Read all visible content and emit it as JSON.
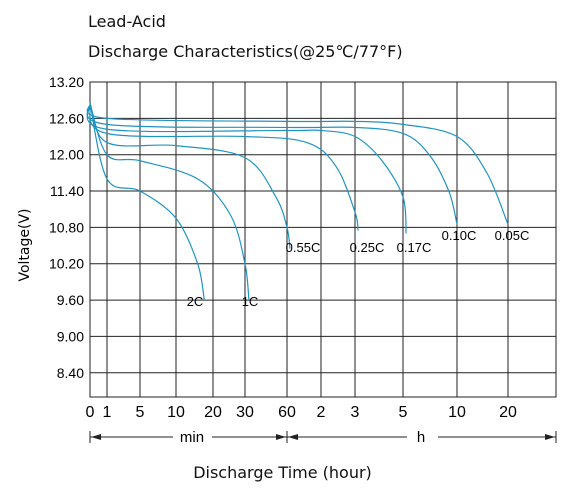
{
  "chart_data": {
    "type": "line",
    "title": "Lead-Acid",
    "subtitle": "Discharge Characteristics(@25℃/77°F)",
    "xlabel": "Discharge Time (hour)",
    "ylabel": "Voltage(V)",
    "ylim": [
      8.0,
      13.2
    ],
    "y_ticks": [
      "13.20",
      "12.60",
      "12.00",
      "11.40",
      "10.80",
      "10.20",
      "9.60",
      "9.00",
      "8.40"
    ],
    "x_ticks": [
      "0",
      "1",
      "5",
      "10",
      "20",
      "30",
      "60",
      "2",
      "3",
      "5",
      "10",
      "20"
    ],
    "x_scale": "logarithmic: 0–60 min, then 60 min–20 h",
    "x_unit_labels": {
      "minutes": "min",
      "hours": "h"
    },
    "grid": true,
    "color": "#1f94c4",
    "series": [
      {
        "name": "2C",
        "points": [
          [
            0,
            12.85
          ],
          [
            1,
            11.6
          ],
          [
            5,
            11.4
          ],
          [
            10,
            10.95
          ],
          [
            15,
            10.2
          ],
          [
            17,
            9.6
          ]
        ]
      },
      {
        "name": "1C",
        "points": [
          [
            0,
            12.85
          ],
          [
            1,
            12.0
          ],
          [
            5,
            11.9
          ],
          [
            15,
            11.6
          ],
          [
            25,
            11.0
          ],
          [
            30,
            10.2
          ],
          [
            32,
            9.6
          ]
        ]
      },
      {
        "name": "0.55C",
        "points": [
          [
            0,
            12.85
          ],
          [
            1,
            12.2
          ],
          [
            10,
            12.15
          ],
          [
            30,
            11.95
          ],
          [
            50,
            11.3
          ],
          [
            60,
            10.8
          ],
          [
            63,
            10.45
          ]
        ]
      },
      {
        "name": "0.25C",
        "points": [
          [
            0,
            12.85
          ],
          [
            1,
            12.35
          ],
          [
            30,
            12.3
          ],
          [
            1.5,
            12.2
          ],
          [
            2.4,
            11.8
          ],
          [
            3,
            11.05
          ],
          [
            3.1,
            10.75
          ]
        ]
      },
      {
        "name": "0.17C",
        "points": [
          [
            0,
            12.85
          ],
          [
            1,
            12.42
          ],
          [
            60,
            12.4
          ],
          [
            2,
            12.4
          ],
          [
            3,
            12.3
          ],
          [
            4,
            11.9
          ],
          [
            5,
            11.3
          ],
          [
            5.2,
            10.7
          ]
        ]
      },
      {
        "name": "0.10C",
        "points": [
          [
            0,
            12.85
          ],
          [
            1,
            12.5
          ],
          [
            60,
            12.45
          ],
          [
            3,
            12.45
          ],
          [
            5,
            12.35
          ],
          [
            7,
            12.0
          ],
          [
            9,
            11.4
          ],
          [
            10,
            10.85
          ]
        ]
      },
      {
        "name": "0.05C",
        "points": [
          [
            0,
            12.85
          ],
          [
            1,
            12.6
          ],
          [
            60,
            12.55
          ],
          [
            3,
            12.55
          ],
          [
            5,
            12.5
          ],
          [
            10,
            12.3
          ],
          [
            15,
            11.7
          ],
          [
            20,
            10.85
          ]
        ]
      }
    ]
  }
}
